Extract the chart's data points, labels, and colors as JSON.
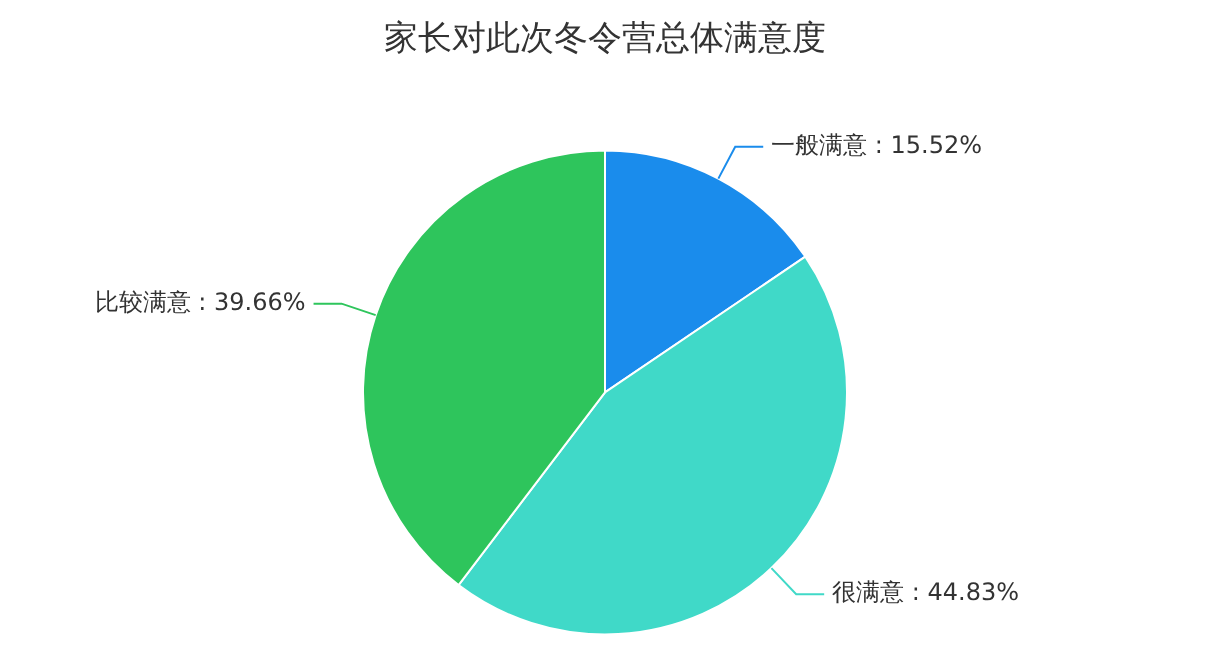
{
  "chart_data": {
    "type": "pie",
    "title": "家长对此次冬令营总体满意度",
    "categories": [
      "一般满意",
      "很满意",
      "比较满意"
    ],
    "values": [
      15.52,
      44.83,
      39.66
    ],
    "value_labels": [
      "15.52%",
      "44.83%",
      "39.66%"
    ],
    "colors": [
      "#1a8cec",
      "#40d9c8",
      "#2ec55c"
    ],
    "legend": false
  }
}
